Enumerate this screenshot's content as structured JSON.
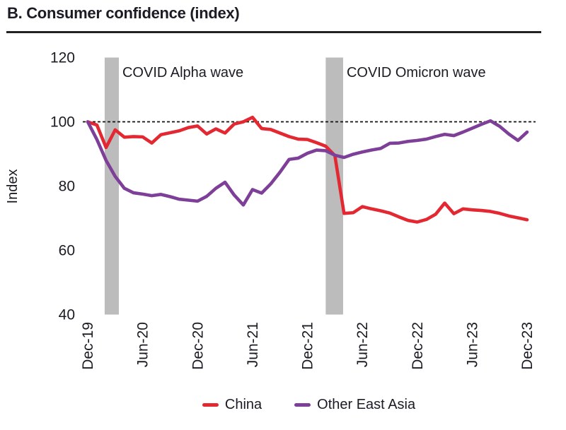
{
  "panel": {
    "title": "B. Consumer confidence (index)"
  },
  "chart_data": {
    "type": "line",
    "title": "B. Consumer confidence (index)",
    "ylabel": "Index",
    "ylim": [
      40,
      120
    ],
    "yticks": [
      40,
      60,
      80,
      100,
      120
    ],
    "reference_line": 100,
    "grid": false,
    "legend_position": "bottom",
    "x_unit": "month",
    "x_range": [
      0,
      48
    ],
    "x_tick_positions": [
      0,
      6,
      12,
      18,
      24,
      30,
      36,
      42,
      48
    ],
    "x_tick_labels": [
      "Dec-19",
      "Jun-20",
      "Dec-20",
      "Jun-21",
      "Dec-21",
      "Jun-22",
      "Dec-22",
      "Jun-23",
      "Dec-23"
    ],
    "band_color": "#bcbcbc",
    "reference_line_color": "#111111",
    "bands": [
      {
        "label": "COVID Alpha wave",
        "x0": 1.85,
        "x1": 3.4
      },
      {
        "label": "COVID Omicron wave",
        "x0": 26.0,
        "x1": 27.9
      }
    ],
    "series": [
      {
        "name": "China",
        "color": "#e42832",
        "values": [
          100,
          99,
          92,
          97.5,
          95.2,
          95.4,
          95.3,
          93.4,
          96,
          96.6,
          97.2,
          98.2,
          98.7,
          96.2,
          97.8,
          96.5,
          99.3,
          100,
          101.4,
          97.9,
          97.6,
          96.5,
          95.4,
          94.6,
          94.5,
          93.5,
          92.4,
          89.5,
          71.5,
          71.7,
          73.6,
          72.9,
          72.3,
          71.6,
          70.4,
          69.3,
          68.8,
          69.6,
          71.2,
          74.7,
          71.4,
          72.9,
          72.6,
          72.4,
          72.1,
          71.5,
          70.7,
          70.1,
          69.5
        ]
      },
      {
        "name": "Other East Asia",
        "color": "#7d3f98",
        "values": [
          100,
          94.5,
          88,
          83,
          79.3,
          77.9,
          77.5,
          77,
          77.4,
          76.7,
          75.9,
          75.6,
          75.3,
          76.8,
          79.3,
          81.2,
          77.2,
          74.1,
          78.9,
          77.8,
          80.7,
          84.3,
          88.3,
          88.7,
          90.2,
          91.2,
          91,
          89.6,
          88.9,
          89.9,
          90.6,
          91.2,
          91.7,
          93.3,
          93.4,
          93.9,
          94.2,
          94.6,
          95.4,
          96.1,
          95.7,
          96.8,
          98,
          99.2,
          100.3,
          98.6,
          96.2,
          94.2,
          96.8
        ]
      }
    ]
  }
}
